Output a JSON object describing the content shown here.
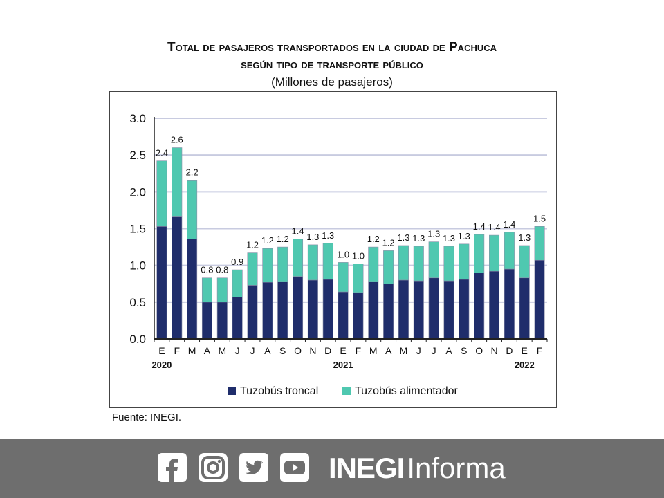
{
  "title_line1": "Total de pasajeros transportados en la ciudad de Pachuca",
  "title_line2": "según tipo de transporte público",
  "subtitle": "(Millones de pasajeros)",
  "source": "Fuente: INEGI.",
  "footer": {
    "brand_bold": "INEGI",
    "brand_light": "Informa",
    "icons": [
      "facebook-icon",
      "instagram-icon",
      "twitter-icon",
      "youtube-icon"
    ]
  },
  "chart_data": {
    "type": "bar",
    "stacked": true,
    "categories": [
      "E",
      "F",
      "M",
      "A",
      "M",
      "J",
      "J",
      "A",
      "S",
      "O",
      "N",
      "D",
      "E",
      "F",
      "M",
      "A",
      "M",
      "J",
      "J",
      "A",
      "S",
      "O",
      "N",
      "D",
      "E",
      "F"
    ],
    "year_labels": [
      {
        "index": 0,
        "label": "2020"
      },
      {
        "index": 12,
        "label": "2021"
      },
      {
        "index": 24,
        "label": "2022"
      }
    ],
    "series": [
      {
        "name": "Tuzobús troncal",
        "color": "#1f2d6b",
        "values": [
          1.53,
          1.66,
          1.36,
          0.5,
          0.5,
          0.57,
          0.73,
          0.77,
          0.78,
          0.85,
          0.8,
          0.81,
          0.64,
          0.63,
          0.78,
          0.75,
          0.8,
          0.79,
          0.83,
          0.79,
          0.81,
          0.9,
          0.92,
          0.95,
          0.83,
          1.07
        ]
      },
      {
        "name": "Tuzobús alimentador",
        "color": "#4fc8b0",
        "values": [
          0.89,
          0.94,
          0.8,
          0.33,
          0.33,
          0.37,
          0.44,
          0.46,
          0.47,
          0.51,
          0.48,
          0.49,
          0.4,
          0.39,
          0.47,
          0.45,
          0.47,
          0.47,
          0.49,
          0.47,
          0.48,
          0.52,
          0.49,
          0.5,
          0.44,
          0.46
        ]
      }
    ],
    "totals_labels": [
      "2.4",
      "2.6",
      "2.2",
      "0.8",
      "0.8",
      "0.9",
      "1.2",
      "1.2",
      "1.2",
      "1.4",
      "1.3",
      "1.3",
      "1.0",
      "1.0",
      "1.2",
      "1.2",
      "1.3",
      "1.3",
      "1.3",
      "1.3",
      "1.3",
      "1.4",
      "1.4",
      "1.4",
      "1.3",
      "1.5"
    ],
    "ylim": [
      0,
      3.0
    ],
    "yticks": [
      "0.0",
      "0.5",
      "1.0",
      "1.5",
      "2.0",
      "2.5",
      "3.0"
    ],
    "grid": true,
    "legend_position": "bottom"
  }
}
